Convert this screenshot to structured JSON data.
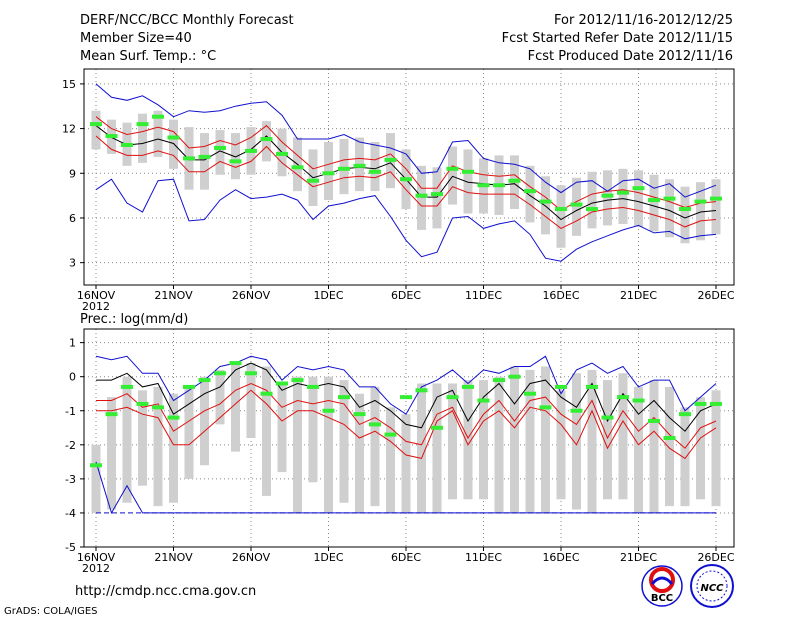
{
  "header": {
    "title": "DERF/NCC/BCC Monthly Forecast",
    "member_size": "Member Size=40",
    "variable": "Mean Surf. Temp.: °C",
    "period": "For 2012/11/16-2012/12/25",
    "fcst_started": "Fcst Started Refer Date 2012/11/15",
    "fcst_produced": "Fcst Produced Date 2012/11/16"
  },
  "footer": {
    "url": "http://cmdp.ncc.cma.gov.cn",
    "credit": "GrADS: COLA/IGES",
    "logo_bcc": "BCC",
    "logo_ncc": "NCC"
  },
  "colors": {
    "black": "#000000",
    "red": "#e01010",
    "blue": "#1010d0",
    "green": "#33ee33",
    "box": "#cfcfcf"
  },
  "chart_data": [
    {
      "type": "line",
      "title": "Mean Surf. Temp.: °C",
      "xlabel": "",
      "ylabel": "°C",
      "x_tick_labels": [
        "16NOV",
        "21NOV",
        "26NOV",
        "1DEC",
        "6DEC",
        "11DEC",
        "16DEC",
        "21DEC",
        "26DEC"
      ],
      "x_tick_days": [
        0,
        5,
        10,
        15,
        20,
        25,
        30,
        35,
        40
      ],
      "x_year_label": "2012",
      "yticks": [
        3,
        6,
        9,
        12,
        15
      ],
      "ylim": [
        1.5,
        16
      ],
      "xlim": [
        -1,
        40
      ],
      "grid": true,
      "series": [
        {
          "name": "ensemble mean",
          "color": "black",
          "values": [
            12.2,
            11.4,
            10.9,
            11.0,
            11.3,
            11.0,
            9.9,
            9.9,
            10.5,
            10.1,
            10.6,
            11.5,
            10.4,
            9.6,
            8.7,
            9.0,
            9.3,
            9.4,
            9.3,
            9.7,
            8.6,
            7.4,
            7.4,
            8.8,
            8.4,
            8.3,
            8.2,
            8.3,
            7.5,
            6.8,
            5.9,
            6.5,
            7.0,
            7.2,
            7.3,
            7.1,
            6.8,
            6.5,
            6.0,
            6.4,
            6.5
          ]
        },
        {
          "name": "upper red",
          "color": "red",
          "values": [
            12.8,
            12.0,
            11.6,
            11.8,
            12.1,
            11.8,
            10.7,
            10.8,
            11.2,
            10.9,
            11.4,
            12.2,
            11.1,
            10.2,
            9.3,
            9.6,
            9.9,
            10.0,
            9.9,
            10.3,
            9.3,
            8.0,
            8.0,
            9.5,
            9.1,
            8.9,
            8.8,
            8.9,
            8.1,
            7.4,
            6.5,
            7.1,
            7.6,
            7.8,
            7.9,
            7.7,
            7.4,
            7.1,
            6.7,
            7.0,
            7.1
          ]
        },
        {
          "name": "lower red",
          "color": "red",
          "values": [
            11.5,
            10.6,
            10.2,
            10.2,
            10.5,
            10.2,
            9.1,
            9.1,
            9.8,
            9.4,
            9.8,
            10.8,
            9.7,
            8.9,
            8.1,
            8.4,
            8.7,
            8.8,
            8.7,
            9.1,
            7.9,
            6.8,
            6.8,
            8.1,
            7.7,
            7.6,
            7.6,
            7.6,
            6.9,
            6.1,
            5.3,
            5.8,
            6.4,
            6.6,
            6.7,
            6.5,
            6.2,
            5.9,
            5.4,
            5.8,
            5.9
          ]
        },
        {
          "name": "ensemble max",
          "color": "blue",
          "values": [
            15.0,
            14.1,
            13.9,
            14.2,
            13.6,
            12.8,
            13.2,
            13.1,
            13.2,
            13.5,
            13.7,
            13.8,
            12.9,
            11.3,
            11.3,
            11.3,
            11.6,
            11.1,
            10.9,
            10.7,
            10.3,
            9.0,
            9.1,
            11.1,
            11.2,
            10.0,
            9.7,
            9.6,
            9.3,
            8.4,
            7.7,
            8.4,
            8.5,
            7.8,
            8.5,
            8.6,
            8.0,
            8.3,
            7.4,
            7.8,
            8.2
          ]
        },
        {
          "name": "ensemble min",
          "color": "blue",
          "values": [
            7.9,
            8.6,
            7.0,
            6.4,
            8.5,
            8.6,
            5.8,
            5.9,
            7.2,
            7.9,
            7.3,
            7.4,
            7.6,
            7.2,
            5.9,
            6.8,
            7.0,
            7.3,
            7.5,
            6.1,
            4.5,
            3.4,
            3.7,
            6.0,
            6.1,
            5.3,
            5.6,
            5.8,
            4.9,
            3.3,
            3.1,
            3.9,
            4.4,
            4.8,
            5.2,
            5.5,
            5.0,
            5.1,
            4.6,
            4.8,
            4.9
          ]
        },
        {
          "name": "observed/green marks",
          "color": "green",
          "values": [
            12.3,
            11.5,
            10.9,
            12.3,
            12.8,
            11.4,
            10.0,
            10.1,
            10.7,
            9.8,
            10.5,
            11.3,
            10.3,
            9.4,
            8.5,
            9.0,
            9.3,
            9.5,
            9.1,
            9.9,
            8.6,
            7.5,
            7.6,
            9.3,
            9.1,
            8.2,
            8.2,
            8.5,
            7.8,
            7.1,
            6.6,
            6.9,
            6.6,
            7.5,
            7.7,
            8.0,
            7.2,
            7.3,
            6.6,
            7.1,
            7.3
          ]
        }
      ],
      "box_high": [
        13.2,
        12.6,
        12.4,
        13.0,
        13.2,
        12.6,
        12.1,
        11.7,
        11.9,
        11.7,
        12.1,
        12.5,
        12.0,
        11.4,
        10.6,
        11.1,
        11.3,
        11.4,
        11.1,
        11.7,
        10.6,
        9.5,
        9.4,
        10.8,
        10.6,
        10.0,
        10.2,
        10.2,
        9.5,
        8.8,
        8.2,
        8.7,
        9.1,
        9.2,
        9.3,
        9.2,
        8.9,
        8.6,
        8.1,
        8.4,
        8.6
      ],
      "box_low": [
        10.6,
        10.3,
        9.5,
        9.7,
        10.1,
        9.3,
        7.9,
        7.9,
        8.9,
        8.6,
        8.9,
        9.8,
        8.8,
        7.8,
        6.8,
        7.2,
        7.6,
        7.8,
        7.8,
        8.0,
        6.6,
        5.2,
        5.3,
        6.9,
        6.3,
        6.3,
        6.2,
        6.6,
        5.7,
        4.9,
        4.0,
        4.8,
        5.3,
        5.5,
        5.6,
        5.4,
        5.1,
        4.7,
        4.3,
        4.5,
        4.9
      ]
    },
    {
      "type": "line",
      "title": "Prec.: log(mm/d)",
      "xlabel": "",
      "ylabel": "log(mm/d)",
      "x_tick_labels": [
        "16NOV",
        "21NOV",
        "26NOV",
        "1DEC",
        "6DEC",
        "11DEC",
        "16DEC",
        "21DEC",
        "26DEC"
      ],
      "x_tick_days": [
        0,
        5,
        10,
        15,
        20,
        25,
        30,
        35,
        40
      ],
      "x_year_label": "2012",
      "yticks": [
        -5,
        -4,
        -3,
        -2,
        -1,
        0,
        1
      ],
      "ylim": [
        -5,
        1.4
      ],
      "xlim": [
        -1,
        40
      ],
      "grid": true,
      "series": [
        {
          "name": "ensemble mean",
          "color": "black",
          "values": [
            -0.1,
            -0.1,
            0.1,
            -0.3,
            -0.2,
            -1.1,
            -0.8,
            -0.5,
            -0.3,
            0.2,
            0.4,
            0.2,
            -0.4,
            -0.2,
            -0.3,
            -0.2,
            -0.3,
            -0.9,
            -0.7,
            -1.0,
            -1.4,
            -1.5,
            -0.6,
            -0.4,
            -1.3,
            -0.6,
            -0.2,
            -0.8,
            -0.2,
            -0.1,
            -0.6,
            -0.9,
            -0.2,
            -1.3,
            -0.5,
            -1.1,
            -0.7,
            -1.2,
            -1.6,
            -1.0,
            -0.8
          ]
        },
        {
          "name": "upper red",
          "color": "red",
          "values": [
            -0.7,
            -0.7,
            -0.5,
            -0.9,
            -0.8,
            -1.6,
            -1.3,
            -1.0,
            -0.8,
            -0.4,
            -0.2,
            -0.4,
            -0.9,
            -0.7,
            -0.8,
            -0.7,
            -0.8,
            -1.4,
            -1.2,
            -1.5,
            -1.9,
            -2.0,
            -1.1,
            -0.9,
            -1.8,
            -1.1,
            -0.7,
            -1.3,
            -0.7,
            -0.6,
            -1.1,
            -1.4,
            -0.7,
            -1.8,
            -1.0,
            -1.6,
            -1.2,
            -1.7,
            -2.1,
            -1.5,
            -1.3
          ]
        },
        {
          "name": "lower red",
          "color": "red",
          "values": [
            -1.0,
            -1.0,
            -0.9,
            -1.1,
            -1.2,
            -2.0,
            -2.0,
            -1.6,
            -1.2,
            -0.8,
            -0.4,
            -0.8,
            -1.3,
            -1.0,
            -1.0,
            -1.2,
            -1.4,
            -1.8,
            -1.6,
            -1.9,
            -2.3,
            -2.4,
            -1.3,
            -1.0,
            -2.0,
            -1.3,
            -1.0,
            -1.5,
            -0.9,
            -1.0,
            -1.4,
            -2.0,
            -1.0,
            -2.1,
            -1.3,
            -2.0,
            -1.6,
            -2.1,
            -2.4,
            -1.8,
            -1.5
          ]
        },
        {
          "name": "ensemble max",
          "color": "blue",
          "values": [
            0.6,
            0.5,
            0.6,
            0.1,
            0.1,
            -0.7,
            -0.4,
            -0.1,
            0.3,
            0.4,
            0.6,
            0.5,
            -0.1,
            0.3,
            0.2,
            0.3,
            0.2,
            -0.3,
            -0.3,
            -0.8,
            -1.1,
            -0.3,
            -0.1,
            0.2,
            -0.2,
            0.2,
            0.1,
            0.3,
            0.3,
            0.6,
            -0.5,
            0.2,
            0.4,
            0.1,
            0.3,
            -0.3,
            -0.1,
            -0.1,
            -1.0,
            -0.6,
            -0.2
          ]
        },
        {
          "name": "ensemble min",
          "color": "blue",
          "values": [
            -2.5,
            -4.0,
            -3.2,
            -4.0,
            -4.0,
            -4.0,
            -4.0,
            -4.0,
            -4.0,
            -4.0,
            -4.0,
            -4.0,
            -4.0,
            -4.0,
            -4.0,
            -4.0,
            -4.0,
            -4.0,
            -4.0,
            -4.0,
            -4.0,
            -4.0,
            -4.0,
            -4.0,
            -4.0,
            -4.0,
            -4.0,
            -4.0,
            -4.0,
            -4.0,
            -4.0,
            -4.0,
            -4.0,
            -4.0,
            -4.0,
            -4.0,
            -4.0,
            -4.0,
            -4.0,
            -4.0,
            -4.0
          ]
        },
        {
          "name": "observed/green marks",
          "color": "green",
          "values": [
            -2.6,
            -1.1,
            -0.3,
            -0.8,
            -0.9,
            -1.2,
            -0.3,
            -0.1,
            0.1,
            0.4,
            0.1,
            -0.5,
            -0.2,
            -0.1,
            -0.3,
            -1.0,
            -0.6,
            -1.1,
            -1.4,
            -1.7,
            -0.6,
            -0.4,
            -1.5,
            -0.6,
            -0.3,
            -0.7,
            -0.1,
            0.0,
            -0.5,
            -0.9,
            -0.3,
            -1.0,
            -0.3,
            -1.2,
            -0.6,
            -0.7,
            -1.3,
            -1.8,
            -1.1,
            -0.8,
            -0.8
          ]
        },
        {
          "name": "ensemble min (dashed)",
          "color": "blue",
          "values": [
            -4,
            -4,
            -4,
            -4,
            -4,
            -4,
            -4,
            -4,
            -4,
            -4,
            -4,
            -4,
            -4,
            -4,
            -4,
            -4,
            -4,
            -4,
            -4,
            -4,
            -4,
            -4,
            -4,
            -4,
            -4,
            -4,
            -4,
            -4,
            -4,
            -4,
            -4,
            -4,
            -4,
            -4,
            -4,
            -4,
            -4,
            -4,
            -4,
            -4,
            -4
          ]
        }
      ],
      "box_high": [
        -2.0,
        -0.6,
        0.0,
        -0.4,
        -0.3,
        -0.5,
        -0.3,
        0.0,
        0.2,
        0.4,
        0.4,
        0.3,
        -0.2,
        0.0,
        0.0,
        0.0,
        -0.1,
        -0.5,
        -0.3,
        -0.9,
        -1.1,
        -0.2,
        -0.2,
        -0.2,
        -0.1,
        -0.1,
        0.0,
        0.3,
        0.2,
        0.3,
        -0.4,
        0.1,
        0.2,
        -0.1,
        0.1,
        -0.3,
        -0.1,
        -0.3,
        -0.9,
        -0.6,
        -0.4
      ],
      "box_low": [
        -4.0,
        -3.9,
        -3.7,
        -3.2,
        -3.8,
        -3.7,
        -3.0,
        -2.6,
        -1.4,
        -2.2,
        -1.8,
        -3.5,
        -2.8,
        -4.0,
        -3.1,
        -4.0,
        -3.7,
        -4.0,
        -3.8,
        -4.0,
        -4.0,
        -4.0,
        -4.0,
        -3.6,
        -3.6,
        -3.6,
        -4.0,
        -4.0,
        -4.0,
        -4.0,
        -3.6,
        -3.9,
        -4.0,
        -3.6,
        -3.6,
        -4.0,
        -4.0,
        -3.8,
        -3.8,
        -3.6,
        -3.8
      ]
    }
  ]
}
